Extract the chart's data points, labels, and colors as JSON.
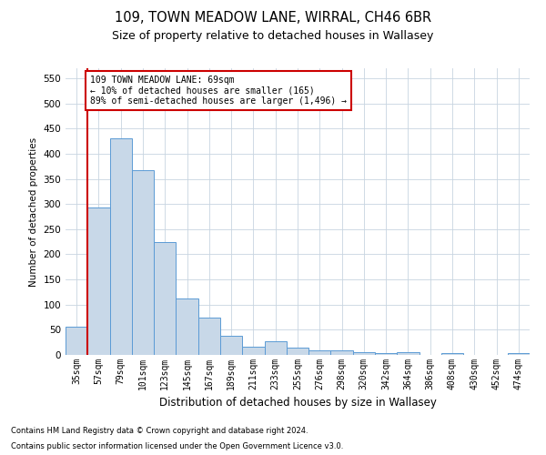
{
  "title": "109, TOWN MEADOW LANE, WIRRAL, CH46 6BR",
  "subtitle": "Size of property relative to detached houses in Wallasey",
  "xlabel": "Distribution of detached houses by size in Wallasey",
  "ylabel": "Number of detached properties",
  "bar_labels": [
    "35sqm",
    "57sqm",
    "79sqm",
    "101sqm",
    "123sqm",
    "145sqm",
    "167sqm",
    "189sqm",
    "211sqm",
    "233sqm",
    "255sqm",
    "276sqm",
    "298sqm",
    "320sqm",
    "342sqm",
    "364sqm",
    "386sqm",
    "408sqm",
    "430sqm",
    "452sqm",
    "474sqm"
  ],
  "bar_values": [
    57,
    293,
    430,
    367,
    225,
    113,
    75,
    38,
    17,
    27,
    14,
    9,
    9,
    5,
    3,
    5,
    0,
    4,
    0,
    0,
    4
  ],
  "bar_color": "#c8d8e8",
  "bar_edgecolor": "#5b9bd5",
  "vline_x_idx": 1,
  "vline_color": "#cc0000",
  "ylim": [
    0,
    570
  ],
  "yticks": [
    0,
    50,
    100,
    150,
    200,
    250,
    300,
    350,
    400,
    450,
    500,
    550
  ],
  "annotation_text": "109 TOWN MEADOW LANE: 69sqm\n← 10% of detached houses are smaller (165)\n89% of semi-detached houses are larger (1,496) →",
  "annotation_box_color": "#ffffff",
  "annotation_box_edgecolor": "#cc0000",
  "footnote1": "Contains HM Land Registry data © Crown copyright and database right 2024.",
  "footnote2": "Contains public sector information licensed under the Open Government Licence v3.0.",
  "background_color": "#ffffff",
  "grid_color": "#c8d4e0",
  "title_fontsize": 10.5,
  "subtitle_fontsize": 9
}
